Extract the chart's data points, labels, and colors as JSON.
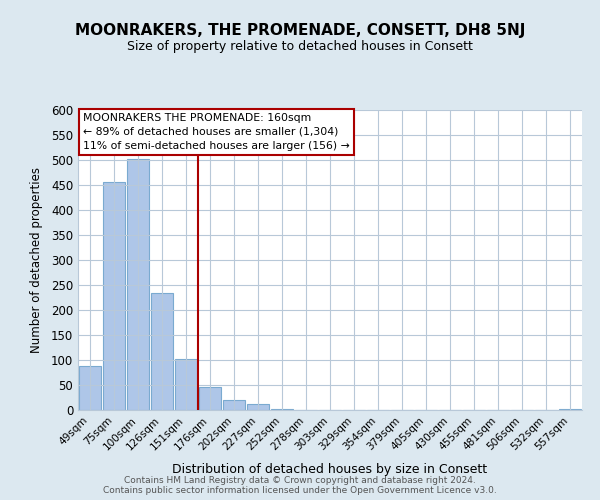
{
  "title": "MOONRAKERS, THE PROMENADE, CONSETT, DH8 5NJ",
  "subtitle": "Size of property relative to detached houses in Consett",
  "xlabel": "Distribution of detached houses by size in Consett",
  "ylabel": "Number of detached properties",
  "bar_labels": [
    "49sqm",
    "75sqm",
    "100sqm",
    "126sqm",
    "151sqm",
    "176sqm",
    "202sqm",
    "227sqm",
    "252sqm",
    "278sqm",
    "303sqm",
    "329sqm",
    "354sqm",
    "379sqm",
    "405sqm",
    "430sqm",
    "455sqm",
    "481sqm",
    "506sqm",
    "532sqm",
    "557sqm"
  ],
  "bar_values": [
    88,
    456,
    502,
    234,
    103,
    47,
    21,
    12,
    2,
    0,
    0,
    0,
    0,
    0,
    0,
    0,
    0,
    0,
    0,
    0,
    2
  ],
  "bar_color": "#aec6e8",
  "bar_edge_color": "#7aaad0",
  "vline_x": 4.5,
  "vline_color": "#aa0000",
  "annotation_text": "MOONRAKERS THE PROMENADE: 160sqm\n← 89% of detached houses are smaller (1,304)\n11% of semi-detached houses are larger (156) →",
  "annotation_box_color": "#ffffff",
  "annotation_box_edge": "#aa0000",
  "ylim": [
    0,
    600
  ],
  "yticks": [
    0,
    50,
    100,
    150,
    200,
    250,
    300,
    350,
    400,
    450,
    500,
    550,
    600
  ],
  "footnote": "Contains HM Land Registry data © Crown copyright and database right 2024.\nContains public sector information licensed under the Open Government Licence v3.0.",
  "background_color": "#dce8f0",
  "title_area_color": "#dce8f0",
  "plot_bg_color": "#ffffff",
  "grid_color": "#b8c8d8"
}
